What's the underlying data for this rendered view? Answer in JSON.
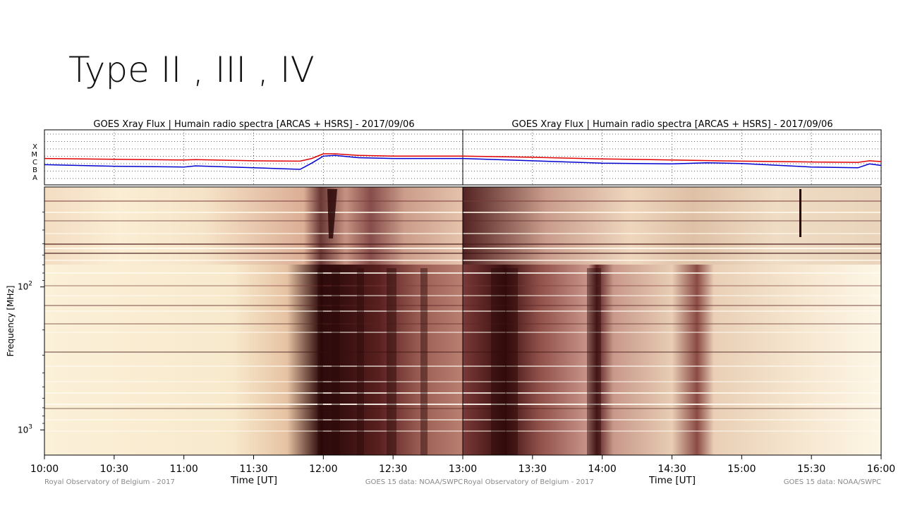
{
  "slide": {
    "title": "Type II , III , IV"
  },
  "chart_data": {
    "type": "heatmap",
    "date": "2017/09/06",
    "panels": [
      {
        "title": "GOES Xray Flux | Humain radio spectra [ARCAS + HSRS] - 2017/09/06",
        "time_ticks": [
          "10:00",
          "10:30",
          "11:00",
          "11:30",
          "12:00",
          "12:30",
          "13:00"
        ],
        "xlabel": "Time [UT]",
        "credit_left": "Royal Observatory of Belgium - 2017",
        "credit_right": "GOES 15 data: NOAA/SWPC",
        "xray_levels": [
          "X",
          "M",
          "C",
          "B",
          "A"
        ],
        "goes_long": {
          "color": "#e00000",
          "t": [
            "10:00",
            "10:30",
            "11:00",
            "11:05",
            "11:30",
            "11:50",
            "11:55",
            "12:00",
            "12:05",
            "12:15",
            "12:30",
            "13:00"
          ],
          "level": [
            2.4,
            2.3,
            2.2,
            2.25,
            2.1,
            2.05,
            2.4,
            3.0,
            3.0,
            2.8,
            2.7,
            2.7
          ]
        },
        "goes_short": {
          "color": "#0000d0",
          "t": [
            "10:00",
            "10:30",
            "11:00",
            "11:05",
            "11:30",
            "11:50",
            "11:55",
            "12:00",
            "12:05",
            "12:15",
            "12:30",
            "13:00"
          ],
          "level": [
            1.6,
            1.4,
            1.3,
            1.45,
            1.2,
            1.0,
            1.8,
            2.7,
            2.8,
            2.5,
            2.4,
            2.4
          ]
        }
      },
      {
        "title": "GOES Xray Flux | Humain radio spectra [ARCAS + HSRS] - 2017/09/06",
        "time_ticks": [
          "13:00",
          "13:30",
          "14:00",
          "14:30",
          "15:00",
          "15:30",
          "16:00"
        ],
        "xlabel": "Time [UT]",
        "credit_left": "Royal Observatory of Belgium - 2017",
        "credit_right": "GOES 15 data: NOAA/SWPC",
        "xray_levels": [
          "X",
          "M",
          "C",
          "B",
          "A"
        ],
        "goes_long": {
          "color": "#e00000",
          "t": [
            "13:00",
            "13:30",
            "14:00",
            "14:30",
            "15:00",
            "15:30",
            "15:50",
            "15:55",
            "16:00"
          ],
          "level": [
            2.7,
            2.55,
            2.35,
            2.2,
            2.05,
            1.95,
            1.9,
            2.1,
            2.0
          ]
        },
        "goes_short": {
          "color": "#0000d0",
          "t": [
            "13:00",
            "13:30",
            "14:00",
            "14:30",
            "14:45",
            "15:00",
            "15:30",
            "15:50",
            "15:55",
            "16:00"
          ],
          "level": [
            2.4,
            2.1,
            1.8,
            1.7,
            1.85,
            1.75,
            1.3,
            1.2,
            1.7,
            1.5
          ]
        }
      }
    ],
    "ylabel": "Frequency [MHz]",
    "yscale": "log",
    "y_ticks": [
      {
        "freq": 100,
        "base": "10",
        "exp": "2"
      },
      {
        "freq": 1000,
        "base": "10",
        "exp": "3"
      }
    ],
    "ylim": [
      1500,
      20
    ],
    "colormap": [
      "#fffde6",
      "#f5e3c2",
      "#e0b49a",
      "#b07a6a",
      "#6b3838",
      "#2a0808"
    ],
    "features": [
      {
        "type": "Type III burst",
        "start": "11:59",
        "end": "12:03"
      },
      {
        "type": "Type IV continuum",
        "start": "11:55",
        "end": "13:00"
      },
      {
        "type": "Type II burst",
        "start": "12:00",
        "end": "12:20"
      }
    ]
  }
}
